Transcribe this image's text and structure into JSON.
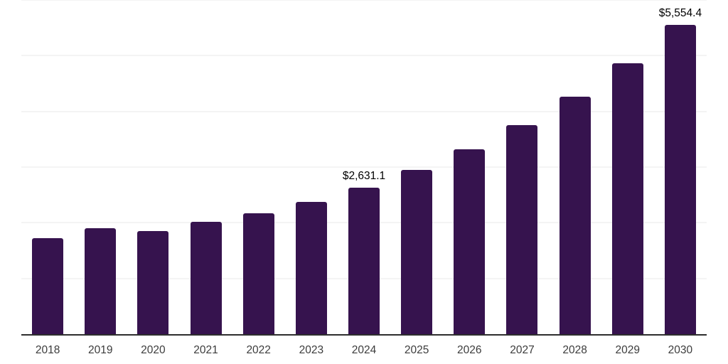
{
  "chart_data": {
    "type": "bar",
    "title": "",
    "xlabel": "",
    "ylabel": "",
    "categories": [
      "2018",
      "2019",
      "2020",
      "2021",
      "2022",
      "2023",
      "2024",
      "2025",
      "2026",
      "2027",
      "2028",
      "2029",
      "2030"
    ],
    "values": [
      1720,
      1905,
      1845,
      2020,
      2170,
      2380,
      2631.1,
      2955,
      3320,
      3750,
      4265,
      4860,
      5554.4
    ],
    "data_labels": [
      null,
      null,
      null,
      null,
      null,
      null,
      "$2,631.1",
      null,
      null,
      null,
      null,
      null,
      "$5,554.4"
    ],
    "ylim": [
      0,
      6000
    ],
    "gridline_values": [
      1000,
      2000,
      3000,
      4000,
      5000,
      6000
    ],
    "grid": "horizontal-light",
    "legend": "none",
    "colors": {
      "bar": "#36134E",
      "axis_line": "#2e2e2e",
      "gridline": "#f4f4f4",
      "tick_label": "#3c3c3c",
      "data_label": "#000000"
    }
  }
}
